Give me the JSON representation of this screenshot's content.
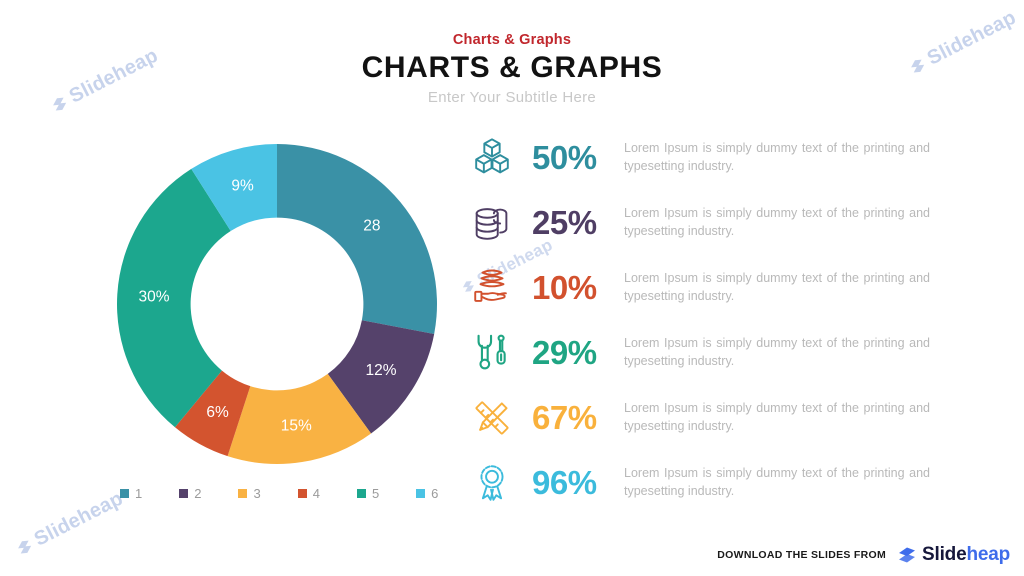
{
  "header": {
    "eyebrow": "Charts & Graphs",
    "title": "CHARTS & GRAPHS",
    "subtitle": "Enter Your Subtitle Here"
  },
  "watermark": {
    "text": "Slideheap",
    "color": "#C7D3EC"
  },
  "chart_data": {
    "type": "pie",
    "subtype": "donut",
    "values": [
      28,
      12,
      15,
      6,
      30,
      9
    ],
    "slice_labels": [
      "28",
      "12%",
      "15%",
      "6%",
      "30%",
      "9%"
    ],
    "colors": [
      "#3A91A6",
      "#55426B",
      "#F9B243",
      "#D3542F",
      "#1CA78E",
      "#4AC3E4"
    ],
    "legend": [
      "1",
      "2",
      "3",
      "4",
      "5",
      "6"
    ],
    "legend_position": "bottom",
    "start_angle_deg": 0,
    "inner_radius_ratio": 0.54,
    "label_color": "#ffffff"
  },
  "stats": {
    "items": [
      {
        "icon": "cubes-icon",
        "percent": "50%",
        "color": "#2E8E9E",
        "text": "Lorem Ipsum is simply dummy text of the printing and typesetting industry."
      },
      {
        "icon": "database-icon",
        "percent": "25%",
        "color": "#4F3E64",
        "text": "Lorem Ipsum is simply dummy text of the printing and typesetting industry."
      },
      {
        "icon": "hand-layers-icon",
        "percent": "10%",
        "color": "#D2512E",
        "text": "Lorem Ipsum is simply dummy text of the printing and typesetting industry."
      },
      {
        "icon": "tools-icon",
        "percent": "29%",
        "color": "#1FA583",
        "text": "Lorem Ipsum is simply dummy text of the printing and typesetting industry."
      },
      {
        "icon": "pencil-ruler-icon",
        "percent": "67%",
        "color": "#F9B13C",
        "text": "Lorem Ipsum is simply dummy text of the printing and typesetting industry."
      },
      {
        "icon": "award-icon",
        "percent": "96%",
        "color": "#3BBBDC",
        "text": "Lorem Ipsum is simply dummy text of the printing and typesetting industry."
      }
    ]
  },
  "footer": {
    "label": "DOWNLOAD THE SLIDES FROM",
    "brand": {
      "name_dark": "Slide",
      "name_accent": "heap",
      "dark_color": "#16173B",
      "accent_color": "#3E6CEB"
    }
  }
}
